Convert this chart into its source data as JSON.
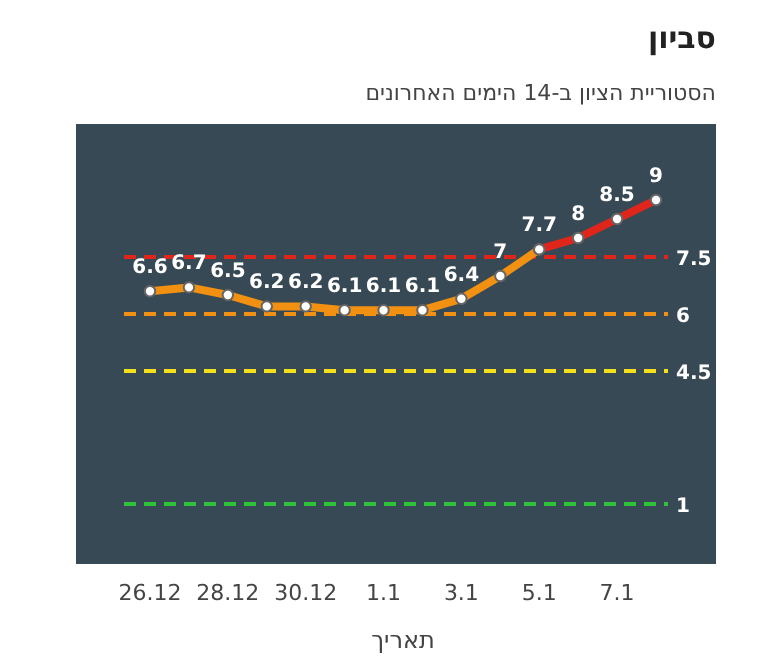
{
  "chart_data": {
    "type": "line",
    "title": "סביון",
    "subtitle": "הסטוריית הציון ב-14 הימים האחרונים",
    "xlabel": "תאריך",
    "categories": [
      "26.12",
      null,
      "28.12",
      null,
      "30.12",
      null,
      "1.1",
      null,
      "3.1",
      null,
      "5.1",
      null,
      "7.1",
      null
    ],
    "series": [
      {
        "color": "#f29111",
        "values": [
          6.6,
          6.7,
          6.5,
          6.2,
          6.2,
          6.1,
          6.1,
          6.1,
          6.4,
          7,
          7.7,
          null,
          null,
          null
        ],
        "value_labels": [
          "6.6",
          "6.7",
          "6.5",
          "6.2",
          "6.2",
          "6.1",
          "6.1",
          "6.1",
          "6.4",
          "7",
          "7.7",
          null,
          null,
          null
        ]
      },
      {
        "color": "#e0261b",
        "values": [
          null,
          null,
          null,
          null,
          null,
          null,
          null,
          null,
          null,
          null,
          7.7,
          8,
          8.5,
          9
        ],
        "value_labels": [
          null,
          null,
          null,
          null,
          null,
          null,
          null,
          null,
          null,
          null,
          null,
          "8",
          "8.5",
          "9"
        ]
      }
    ],
    "marker": "circle",
    "ref_lines": [
      {
        "axis": "y",
        "value": 7.5,
        "label": "7.5",
        "color": "#e0261b",
        "line_style": "dashed"
      },
      {
        "axis": "y",
        "value": 6,
        "label": "6",
        "color": "#f29111",
        "line_style": "dashed"
      },
      {
        "axis": "y",
        "value": 4.5,
        "label": "4.5",
        "color": "#f5e11b",
        "line_style": "dashed"
      },
      {
        "axis": "y",
        "value": 1,
        "label": "1",
        "color": "#2ec23a",
        "line_style": "dashed"
      }
    ]
  }
}
